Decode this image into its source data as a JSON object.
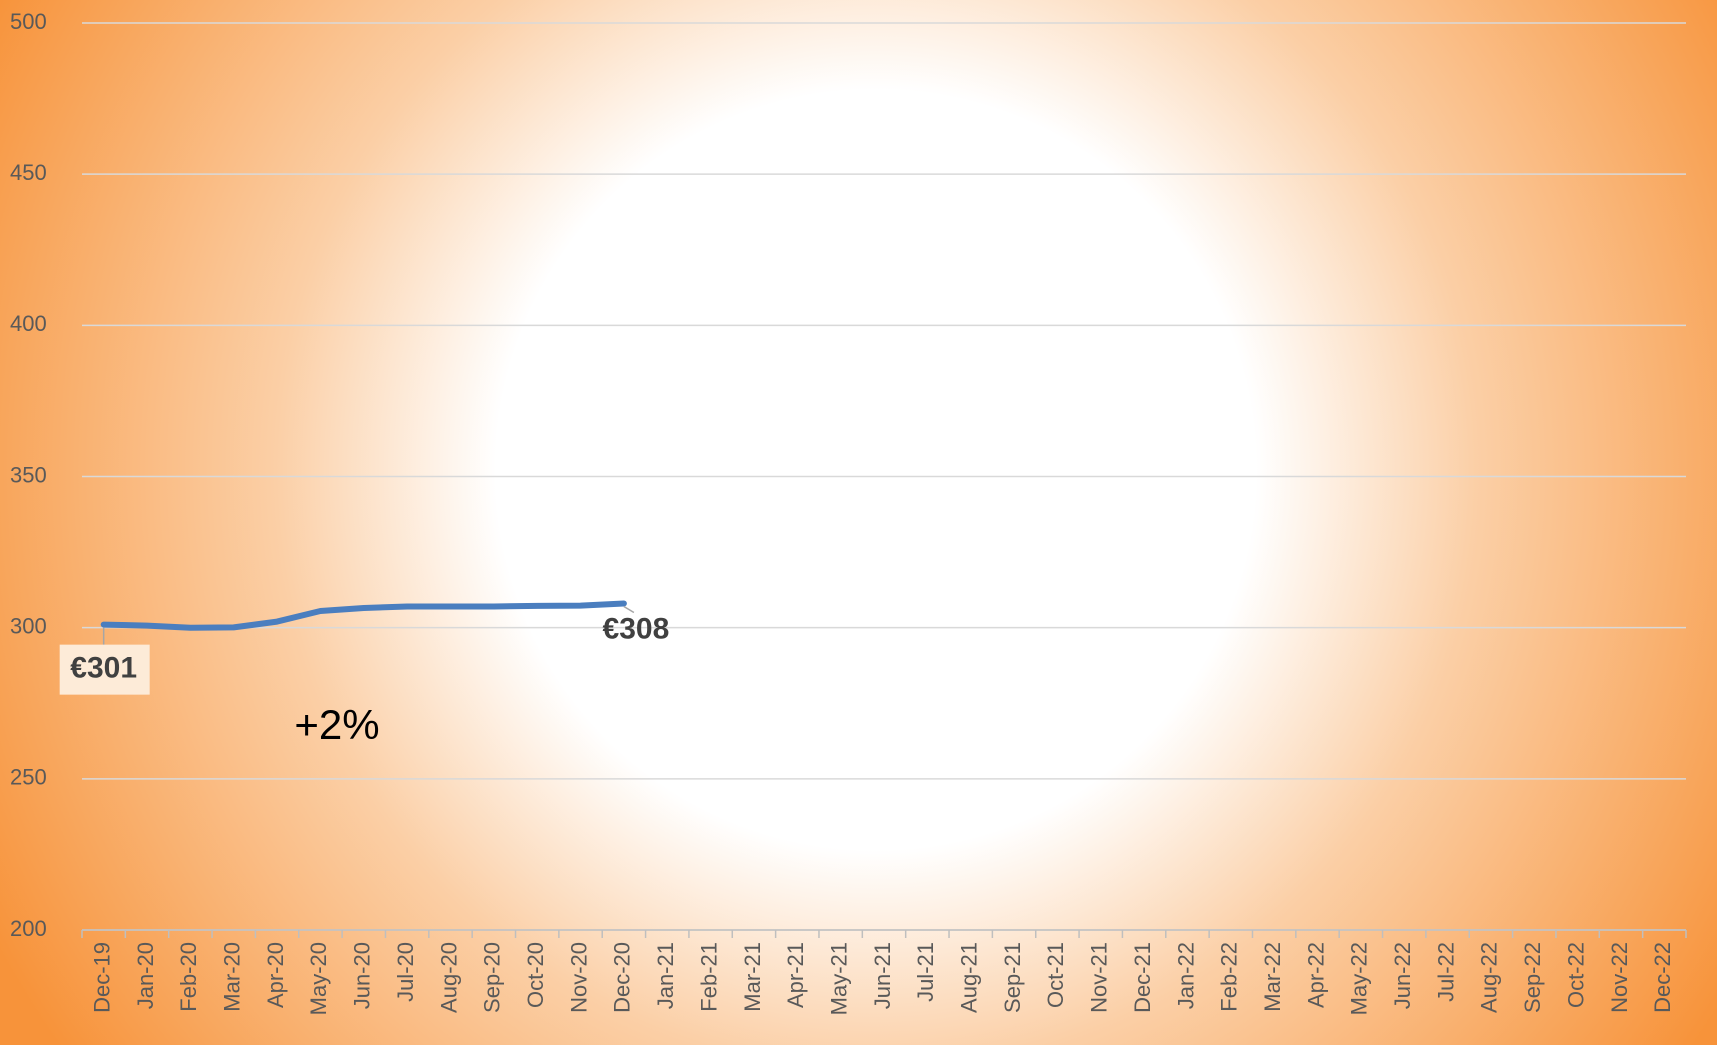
{
  "chart_data": {
    "type": "line",
    "categories": [
      "Dec-19",
      "Jan-20",
      "Feb-20",
      "Mar-20",
      "Apr-20",
      "May-20",
      "Jun-20",
      "Jul-20",
      "Aug-20",
      "Sep-20",
      "Oct-20",
      "Nov-20",
      "Dec-20",
      "Jan-21",
      "Feb-21",
      "Mar-21",
      "Apr-21",
      "May-21",
      "Jun-21",
      "Jul-21",
      "Aug-21",
      "Sep-21",
      "Oct-21",
      "Nov-21",
      "Dec-21",
      "Jan-22",
      "Feb-22",
      "Mar-22",
      "Apr-22",
      "May-22",
      "Jun-22",
      "Jul-22",
      "Aug-22",
      "Sep-22",
      "Oct-22",
      "Nov-22",
      "Dec-22"
    ],
    "values": [
      301,
      300.7,
      300,
      300.1,
      302,
      305.5,
      306.5,
      307,
      307,
      307,
      307.2,
      307.3,
      308,
      null,
      null,
      null,
      null,
      null,
      null,
      null,
      null,
      null,
      null,
      null,
      null,
      null,
      null,
      null,
      null,
      null,
      null,
      null,
      null,
      null,
      null,
      null,
      null
    ],
    "value_labels": [
      "€301",
      null,
      null,
      null,
      null,
      null,
      null,
      null,
      null,
      null,
      null,
      null,
      "€308",
      null,
      null,
      null,
      null,
      null,
      null,
      null,
      null,
      null,
      null,
      null,
      null,
      null,
      null,
      null,
      null,
      null,
      null,
      null,
      null,
      null,
      null,
      null,
      null
    ],
    "color": "#4a7ebf",
    "ylim": [
      200,
      500
    ],
    "yticks": [
      200,
      250,
      300,
      350,
      400,
      450,
      500
    ],
    "grid": true,
    "annotations": [
      {
        "text": "+2%"
      }
    ]
  }
}
